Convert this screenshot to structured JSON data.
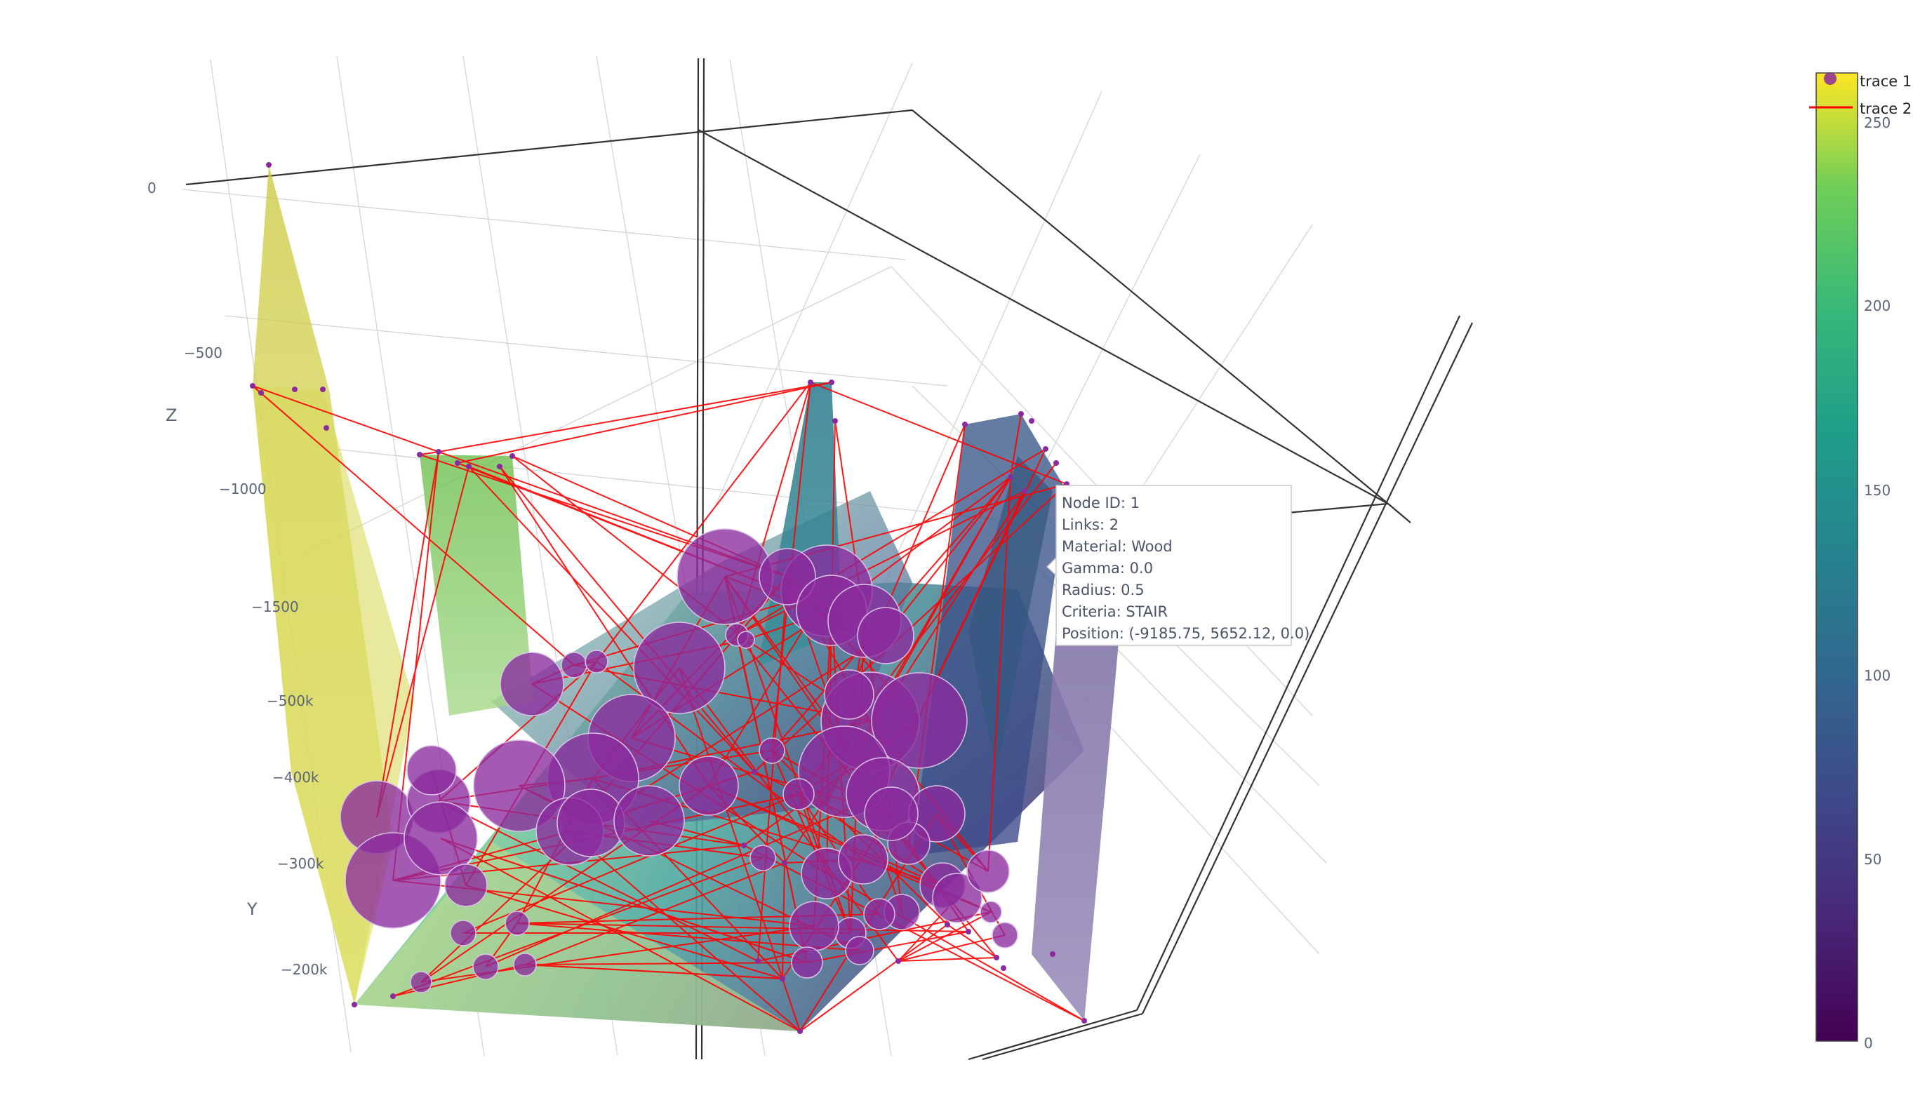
{
  "chart_data": {
    "type": "scatter3d",
    "axes": {
      "z": {
        "title": "Z",
        "ticks": [
          "0",
          "−500",
          "−1000",
          "−1500"
        ]
      },
      "y": {
        "title": "Y",
        "ticks": [
          "−500k",
          "−400k",
          "−300k",
          "−200k"
        ]
      }
    },
    "legend": {
      "placement": "top-right",
      "entries": [
        {
          "name": "trace 1",
          "marker": "circle",
          "color": "#8b2a9e"
        },
        {
          "name": "trace 2",
          "marker": "line",
          "color": "#ff0000"
        }
      ]
    },
    "colorbar": {
      "colorscale": "Viridis",
      "range": [
        0,
        260
      ],
      "ticks": [
        "250",
        "200",
        "150",
        "100",
        "50",
        "0"
      ]
    },
    "series": [
      {
        "name": "trace 1",
        "mode": "markers",
        "marker_color": "#8b2a9e",
        "marker_opacity": 0.8
      },
      {
        "name": "trace 2",
        "mode": "lines",
        "line_color": "#ff0000"
      }
    ],
    "hover": {
      "lines": [
        "Node ID: 1",
        "Links: 2",
        "Material: Wood",
        "Gamma: 0.0",
        "Radius: 0.5",
        "Criteria: STAIR",
        "Position: (-9185.75, 5652.12, 0.0)"
      ]
    }
  },
  "colors": {
    "markers": "#8b2a9e",
    "links": "#ff0000",
    "axis": "#333333",
    "grid": "#d4d4d4",
    "tick_text": "#5a6578"
  }
}
